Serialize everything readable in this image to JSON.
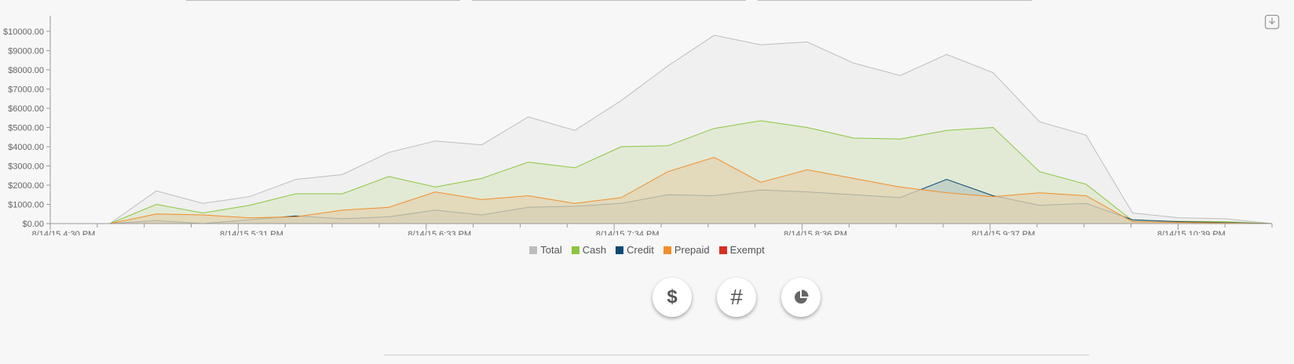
{
  "chart_data": {
    "type": "area",
    "x_labels": [
      "8/14/15 4:30 PM",
      "8/14/15 5:31 PM",
      "8/14/15 6:33 PM",
      "8/14/15 7:34 PM",
      "8/14/15 8:36 PM",
      "8/14/15 9:37 PM",
      "8/14/15 10:39 PM"
    ],
    "y_ticks": [
      "$0.00",
      "$1000.00",
      "$2000.00",
      "$3000.00",
      "$4000.00",
      "$5000.00",
      "$6000.00",
      "$7000.00",
      "$8000.00",
      "$9000.00",
      "$10000.00"
    ],
    "ylim": [
      0,
      10000
    ],
    "legend_position": "bottom-center",
    "series": [
      {
        "name": "Total",
        "color": "#bdbdbd",
        "fill": "#eeeeee",
        "values": [
          0,
          1700,
          1050,
          1400,
          2300,
          2550,
          3700,
          4300,
          4100,
          5550,
          4850,
          6400,
          8200,
          9800,
          9300,
          9450,
          8350,
          7700,
          8800,
          7850,
          5300,
          4600,
          550,
          300,
          250,
          0
        ]
      },
      {
        "name": "Cash",
        "color": "#8cc63f",
        "fill": "#dde8cc",
        "values": [
          0,
          1000,
          550,
          950,
          1550,
          1550,
          2450,
          1900,
          2350,
          3200,
          2900,
          4000,
          4050,
          4950,
          5350,
          5000,
          4450,
          4400,
          4850,
          5000,
          2700,
          2050,
          150,
          120,
          100,
          0
        ]
      },
      {
        "name": "Credit",
        "color": "#0b4a74",
        "fill": "#b8c9c1",
        "values": [
          0,
          150,
          0,
          200,
          400,
          250,
          350,
          700,
          450,
          850,
          900,
          1050,
          1500,
          1450,
          1750,
          1650,
          1500,
          1350,
          2300,
          1450,
          950,
          1050,
          200,
          100,
          50,
          0
        ]
      },
      {
        "name": "Prepaid",
        "color": "#f28e2b",
        "fill": "#e3d3b1",
        "values": [
          0,
          500,
          450,
          300,
          350,
          700,
          850,
          1650,
          1250,
          1450,
          1050,
          1350,
          2700,
          3450,
          2150,
          2800,
          2350,
          1900,
          1600,
          1400,
          1600,
          1450,
          100,
          60,
          30,
          0
        ]
      },
      {
        "name": "Exempt",
        "color": "#d7301f",
        "fill": "none",
        "values": [
          0,
          0,
          0,
          0,
          0,
          0,
          0,
          0,
          0,
          0,
          0,
          0,
          0,
          0,
          0,
          0,
          0,
          0,
          0,
          0,
          0,
          0,
          0,
          0,
          0,
          0
        ]
      }
    ]
  },
  "buttons": {
    "dollar": "$",
    "count": "#"
  }
}
